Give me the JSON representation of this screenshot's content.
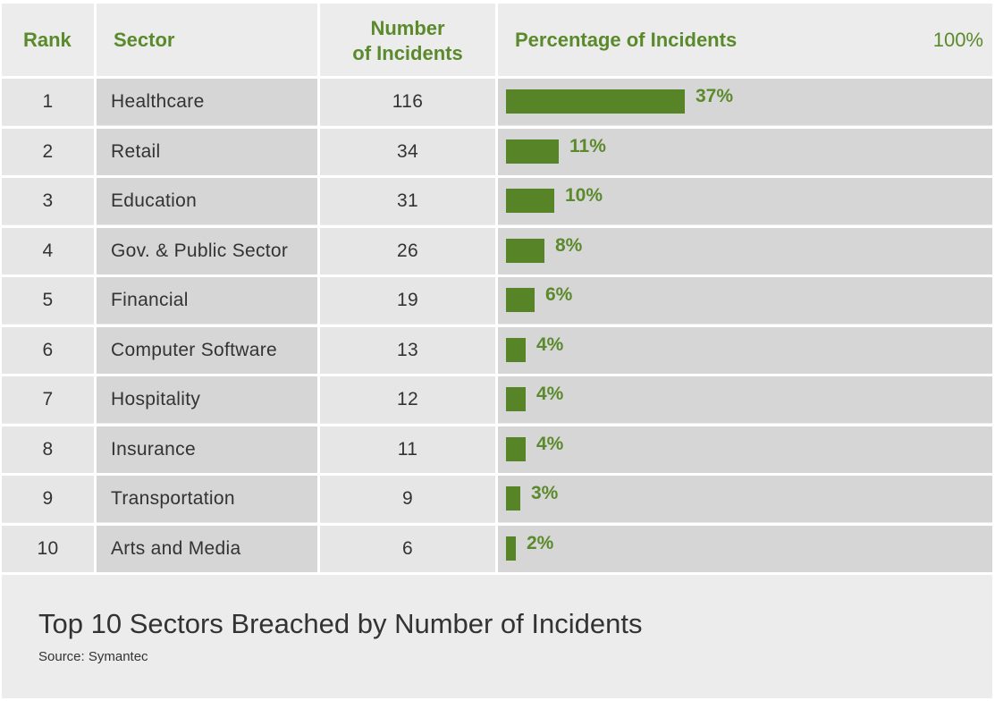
{
  "headers": {
    "rank": "Rank",
    "sector": "Sector",
    "number_line1": "Number",
    "number_line2": "of Incidents",
    "percentage": "Percentage of Incidents",
    "max_label": "100%"
  },
  "footer": {
    "title": "Top 10 Sectors Breached by Number of Incidents",
    "source": "Source: Symantec"
  },
  "colors": {
    "accent": "#5a8a2b",
    "bar": "#568426"
  },
  "chart_data": {
    "type": "bar",
    "title": "Top 10 Sectors Breached by Number of Incidents",
    "xlim": [
      0,
      100
    ],
    "rows": [
      {
        "rank": "1",
        "sector": "Healthcare",
        "incidents": "116",
        "percent": 37,
        "label": "37%"
      },
      {
        "rank": "2",
        "sector": "Retail",
        "incidents": "34",
        "percent": 11,
        "label": "11%"
      },
      {
        "rank": "3",
        "sector": "Education",
        "incidents": "31",
        "percent": 10,
        "label": "10%"
      },
      {
        "rank": "4",
        "sector": "Gov. & Public Sector",
        "incidents": "26",
        "percent": 8,
        "label": "8%"
      },
      {
        "rank": "5",
        "sector": "Financial",
        "incidents": "19",
        "percent": 6,
        "label": "6%"
      },
      {
        "rank": "6",
        "sector": "Computer Software",
        "incidents": "13",
        "percent": 4,
        "label": "4%"
      },
      {
        "rank": "7",
        "sector": "Hospitality",
        "incidents": "12",
        "percent": 4,
        "label": "4%"
      },
      {
        "rank": "8",
        "sector": "Insurance",
        "incidents": "11",
        "percent": 4,
        "label": "4%"
      },
      {
        "rank": "9",
        "sector": "Transportation",
        "incidents": "9",
        "percent": 3,
        "label": "3%"
      },
      {
        "rank": "10",
        "sector": "Arts and Media",
        "incidents": "6",
        "percent": 2,
        "label": "2%"
      }
    ]
  }
}
